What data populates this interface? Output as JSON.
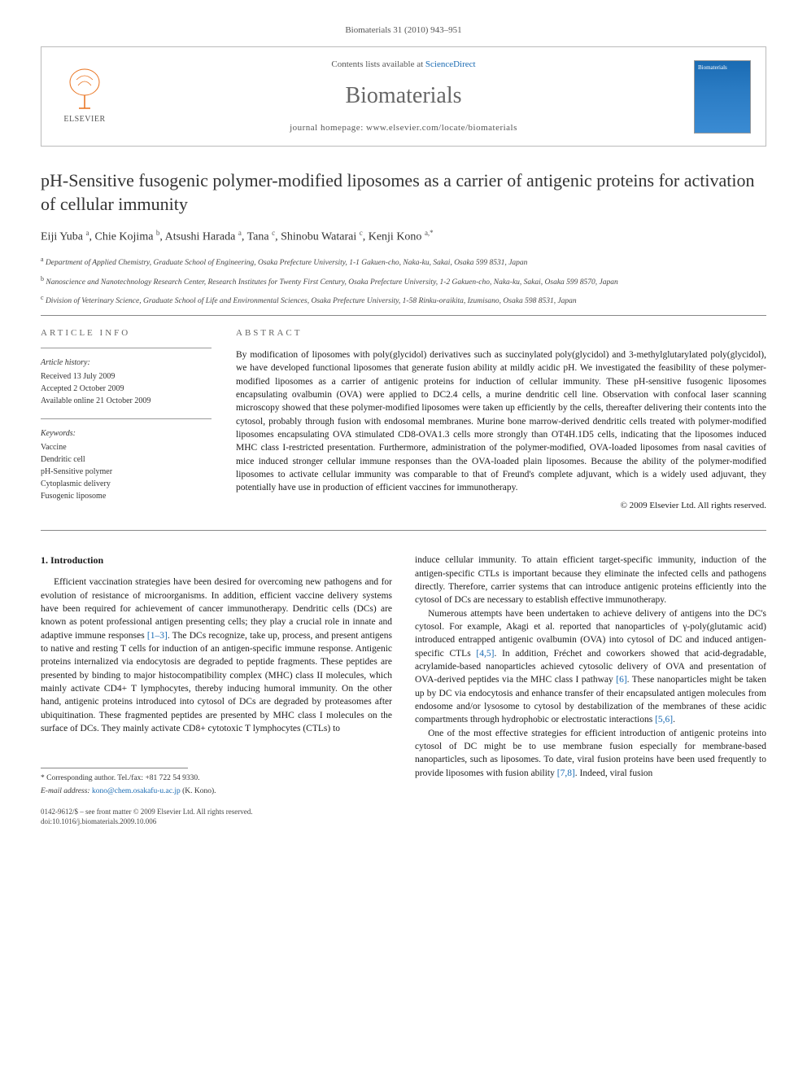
{
  "citation": "Biomaterials 31 (2010) 943–951",
  "header": {
    "contents_prefix": "Contents lists available at ",
    "contents_link": "ScienceDirect",
    "journal_name": "Biomaterials",
    "homepage_prefix": "journal homepage: ",
    "homepage_url": "www.elsevier.com/locate/biomaterials",
    "publisher_name": "ELSEVIER",
    "cover_label": "Biomaterials"
  },
  "title": "pH-Sensitive fusogenic polymer-modified liposomes as a carrier of antigenic proteins for activation of cellular immunity",
  "authors_html": "Eiji Yuba <sup>a</sup>, Chie Kojima <sup>b</sup>, Atsushi Harada <sup>a</sup>,  Tana <sup>c</sup>, Shinobu Watarai <sup>c</sup>, Kenji Kono <sup>a,*</sup>",
  "affiliations": [
    "a Department of Applied Chemistry, Graduate School of Engineering, Osaka Prefecture University, 1-1 Gakuen-cho, Naka-ku, Sakai, Osaka 599 8531, Japan",
    "b Nanoscience and Nanotechnology Research Center, Research Institutes for Twenty First Century, Osaka Prefecture University, 1-2 Gakuen-cho, Naka-ku, Sakai, Osaka 599 8570, Japan",
    "c Division of Veterinary Science, Graduate School of Life and Environmental Sciences, Osaka Prefecture University, 1-58 Rinku-oraikita, Izumisano, Osaka 598 8531, Japan"
  ],
  "info": {
    "heading": "ARTICLE INFO",
    "history_label": "Article history:",
    "history": [
      "Received 13 July 2009",
      "Accepted 2 October 2009",
      "Available online 21 October 2009"
    ],
    "keywords_label": "Keywords:",
    "keywords": [
      "Vaccine",
      "Dendritic cell",
      "pH-Sensitive polymer",
      "Cytoplasmic delivery",
      "Fusogenic liposome"
    ]
  },
  "abstract": {
    "heading": "ABSTRACT",
    "text": "By modification of liposomes with poly(glycidol) derivatives such as succinylated poly(glycidol) and 3-methylglutarylated poly(glycidol), we have developed functional liposomes that generate fusion ability at mildly acidic pH. We investigated the feasibility of these polymer-modified liposomes as a carrier of antigenic proteins for induction of cellular immunity. These pH-sensitive fusogenic liposomes encapsulating ovalbumin (OVA) were applied to DC2.4 cells, a murine dendritic cell line. Observation with confocal laser scanning microscopy showed that these polymer-modified liposomes were taken up efficiently by the cells, thereafter delivering their contents into the cytosol, probably through fusion with endosomal membranes. Murine bone marrow-derived dendritic cells treated with polymer-modified liposomes encapsulating OVA stimulated CD8-OVA1.3 cells more strongly than OT4H.1D5 cells, indicating that the liposomes induced MHC class I-restricted presentation. Furthermore, administration of the polymer-modified, OVA-loaded liposomes from nasal cavities of mice induced stronger cellular immune responses than the OVA-loaded plain liposomes. Because the ability of the polymer-modified liposomes to activate cellular immunity was comparable to that of Freund's complete adjuvant, which is a widely used adjuvant, they potentially have use in production of efficient vaccines for immunotherapy.",
    "copyright": "© 2009 Elsevier Ltd. All rights reserved."
  },
  "section1": {
    "heading": "1. Introduction",
    "p1a": "Efficient vaccination strategies have been desired for overcoming new pathogens and for evolution of resistance of microorganisms. In addition, efficient vaccine delivery systems have been required for achievement of cancer immunotherapy. Dendritic cells (DCs) are known as potent professional antigen presenting cells; they play a crucial role in innate and adaptive immune responses ",
    "ref1": "[1–3]",
    "p1b": ". The DCs recognize, take up, process, and present antigens to native and resting T cells for induction of an antigen-specific immune response. Antigenic proteins internalized via endocytosis are degraded to peptide fragments. These peptides are presented by binding to major histocompatibility complex (MHC) class II molecules, which mainly activate CD4+ T lymphocytes, thereby inducing humoral immunity. On the other hand, antigenic proteins introduced into cytosol of DCs are degraded by proteasomes after ubiquitination. These fragmented peptides are presented by MHC class I molecules on the surface of DCs. They mainly activate CD8+ cytotoxic T lymphocytes (CTLs) to",
    "p1c": "induce cellular immunity. To attain efficient target-specific immunity, induction of the antigen-specific CTLs is important because they eliminate the infected cells and pathogens directly. Therefore, carrier systems that can introduce antigenic proteins efficiently into the cytosol of DCs are necessary to establish effective immunotherapy.",
    "p2a": "Numerous attempts have been undertaken to achieve delivery of antigens into the DC's cytosol. For example, Akagi et al. reported that nanoparticles of γ-poly(glutamic acid) introduced entrapped antigenic ovalbumin (OVA) into cytosol of DC and induced antigen-specific CTLs ",
    "ref2": "[4,5]",
    "p2b": ". In addition, Fréchet and coworkers showed that acid-degradable, acrylamide-based nanoparticles achieved cytosolic delivery of OVA and presentation of OVA-derived peptides via the MHC class I pathway ",
    "ref3": "[6]",
    "p2c": ". These nanoparticles might be taken up by DC via endocytosis and enhance transfer of their encapsulated antigen molecules from endosome and/or lysosome to cytosol by destabilization of the membranes of these acidic compartments through hydrophobic or electrostatic interactions ",
    "ref4": "[5,6]",
    "p2d": ".",
    "p3a": "One of the most effective strategies for efficient introduction of antigenic proteins into cytosol of DC might be to use membrane fusion especially for membrane-based nanoparticles, such as liposomes. To date, viral fusion proteins have been used frequently to provide liposomes with fusion ability ",
    "ref5": "[7,8]",
    "p3b": ". Indeed, viral fusion"
  },
  "footer": {
    "corresponding": "* Corresponding author. Tel./fax: +81 722 54 9330.",
    "email_label": "E-mail address: ",
    "email": "kono@chem.osakafu-u.ac.jp",
    "email_suffix": " (K. Kono).",
    "issn_line": "0142-9612/$ – see front matter © 2009 Elsevier Ltd. All rights reserved.",
    "doi": "doi:10.1016/j.biomaterials.2009.10.006"
  },
  "colors": {
    "link": "#1a6bb3",
    "text": "#1a1a1a",
    "muted": "#666666",
    "rule": "#888888",
    "elsevier_orange": "#e9711c"
  }
}
